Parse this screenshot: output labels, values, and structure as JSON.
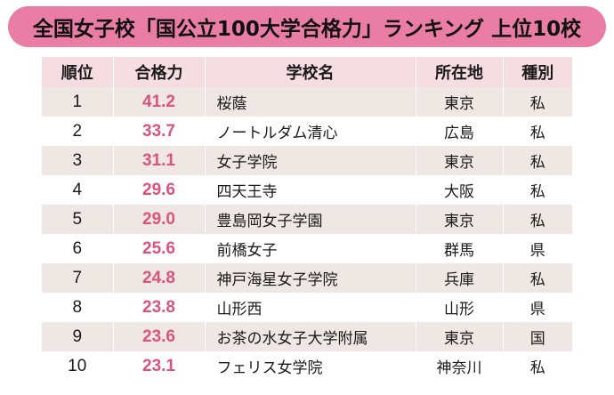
{
  "title": "全国女子校「国公立100大学合格力」ランキング 上位10校",
  "colors": {
    "title_bg": "#e97da3",
    "header_bg": "#f5dde2",
    "shaded_row_bg": "#eee7e3",
    "score_text": "#d9547f"
  },
  "table": {
    "headers": [
      "順位",
      "合格力",
      "学校名",
      "所在地",
      "種別"
    ],
    "rows": [
      {
        "rank": "1",
        "score": "41.2",
        "school": "桜蔭",
        "location": "東京",
        "type": "私"
      },
      {
        "rank": "2",
        "score": "33.7",
        "school": "ノートルダム清心",
        "location": "広島",
        "type": "私"
      },
      {
        "rank": "3",
        "score": "31.1",
        "school": "女子学院",
        "location": "東京",
        "type": "私"
      },
      {
        "rank": "4",
        "score": "29.6",
        "school": "四天王寺",
        "location": "大阪",
        "type": "私"
      },
      {
        "rank": "5",
        "score": "29.0",
        "school": "豊島岡女子学園",
        "location": "東京",
        "type": "私"
      },
      {
        "rank": "6",
        "score": "25.6",
        "school": "前橋女子",
        "location": "群馬",
        "type": "県"
      },
      {
        "rank": "7",
        "score": "24.8",
        "school": "神戸海星女子学院",
        "location": "兵庫",
        "type": "私"
      },
      {
        "rank": "8",
        "score": "23.8",
        "school": "山形西",
        "location": "山形",
        "type": "県"
      },
      {
        "rank": "9",
        "score": "23.6",
        "school": "お茶の水女子大学附属",
        "location": "東京",
        "type": "国"
      },
      {
        "rank": "10",
        "score": "23.1",
        "school": "フェリス女学院",
        "location": "神奈川",
        "type": "私"
      }
    ]
  }
}
